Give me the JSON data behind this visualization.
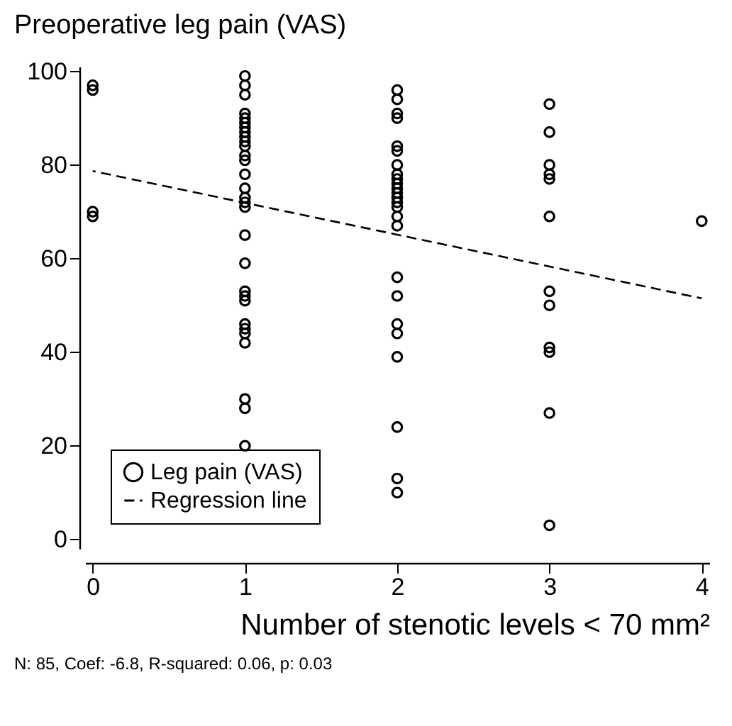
{
  "chart_data": {
    "type": "scatter",
    "title": "Preoperative leg pain (VAS)",
    "xlabel": "Number of stenotic levels < 70 mm²",
    "annotations": [
      "N: 85, Coef: -6.8, R-squared: 0.06, p: 0.03"
    ],
    "xlim": [
      -0.05,
      4.05
    ],
    "xticks": [
      0,
      1,
      2,
      3,
      4
    ],
    "ylim": [
      -2,
      101
    ],
    "yticks": [
      0,
      20,
      40,
      60,
      80,
      100
    ],
    "grid": false,
    "legend": "bottom left",
    "series": [
      {
        "name": "Leg pain (VAS)",
        "marker": "circle",
        "color": "#000000",
        "x": [
          0,
          0,
          0,
          0,
          1,
          1,
          1,
          1,
          1,
          1,
          1,
          1,
          1,
          1,
          1,
          1,
          1,
          1,
          1,
          1,
          1,
          1,
          1,
          1,
          1,
          1,
          1,
          1,
          1,
          1,
          1,
          1,
          1,
          1,
          2,
          2,
          2,
          2,
          2,
          2,
          2,
          2,
          2,
          2,
          2,
          2,
          2,
          2,
          2,
          2,
          2,
          2,
          2,
          2,
          2,
          2,
          2,
          2,
          2,
          3,
          3,
          3,
          3,
          3,
          3,
          3,
          3,
          3,
          3,
          3,
          3,
          4
        ],
        "values": [
          97,
          96,
          70,
          69,
          99,
          97,
          95,
          91,
          90,
          89,
          88,
          87,
          86,
          85,
          84,
          82,
          81,
          78,
          75,
          73,
          72,
          71,
          65,
          59,
          53,
          52,
          51,
          46,
          45,
          44,
          42,
          30,
          28,
          20,
          96,
          94,
          91,
          90,
          84,
          83,
          80,
          78,
          77,
          76,
          75,
          74,
          73,
          72,
          71,
          69,
          67,
          56,
          52,
          46,
          44,
          39,
          24,
          13,
          10,
          93,
          87,
          80,
          78,
          77,
          69,
          53,
          50,
          41,
          40,
          27,
          3,
          68
        ]
      },
      {
        "name": "Regression line",
        "type": "line",
        "color": "#000000",
        "line_style": "dashed",
        "x": [
          0,
          4
        ],
        "values": [
          78.7,
          51.5
        ]
      }
    ]
  }
}
